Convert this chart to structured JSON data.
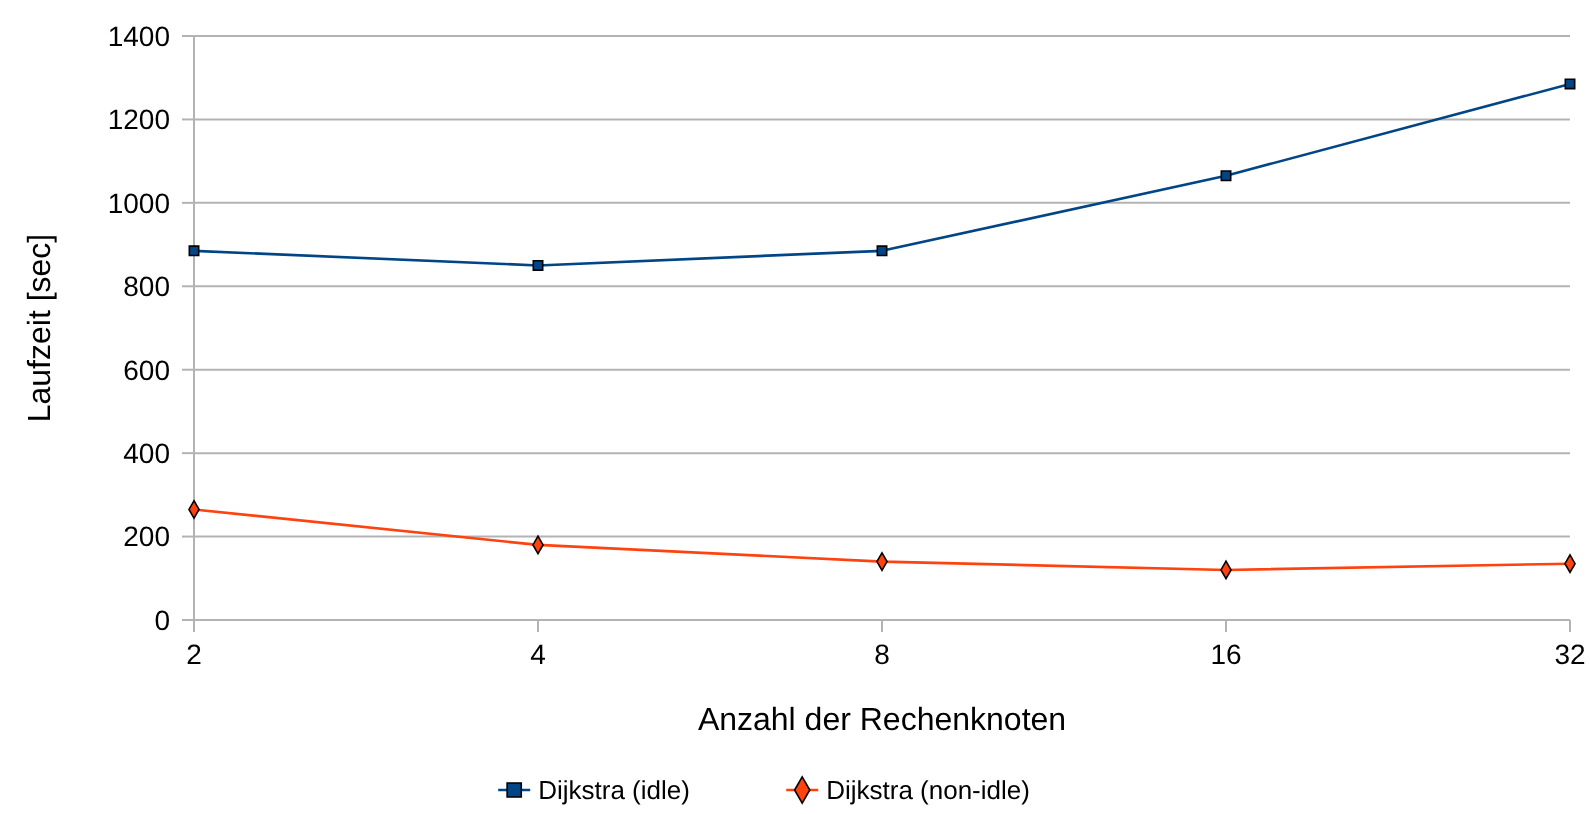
{
  "chart_data": {
    "type": "line",
    "xlabel": "Anzahl der Rechenknoten",
    "ylabel": "Laufzeit [sec]",
    "categories": [
      "2",
      "4",
      "8",
      "16",
      "32"
    ],
    "series": [
      {
        "name": "Dijkstra (idle)",
        "color": "#004586",
        "marker": "square",
        "values": [
          885,
          850,
          885,
          1065,
          1285
        ]
      },
      {
        "name": "Dijkstra (non-idle)",
        "color": "#ff420e",
        "marker": "diamond",
        "values": [
          265,
          180,
          140,
          120,
          135
        ]
      }
    ],
    "ylim": [
      0,
      1400
    ],
    "yticks": [
      0,
      200,
      400,
      600,
      800,
      1000,
      1200,
      1400
    ],
    "grid": "y",
    "legend": "bottom"
  }
}
